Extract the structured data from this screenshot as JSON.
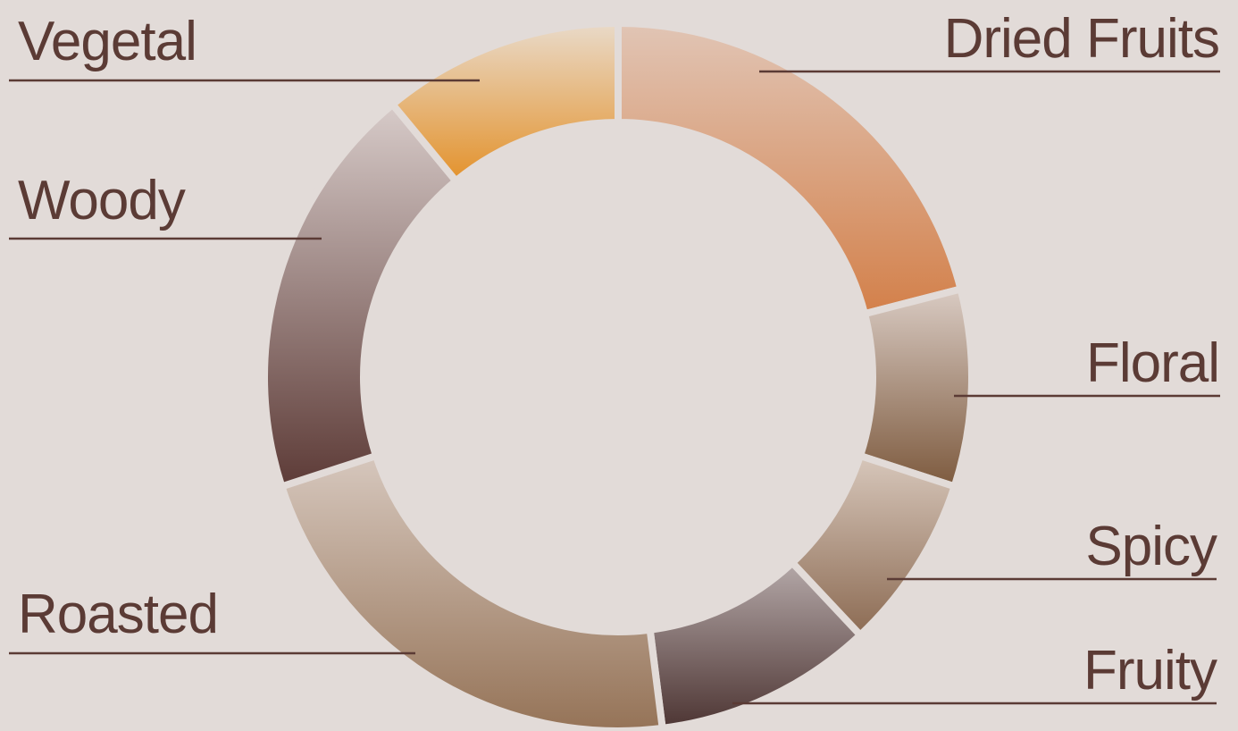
{
  "chart_data": {
    "type": "donut",
    "categories": [
      "Dried Fruits",
      "Floral",
      "Spicy",
      "Fruity",
      "Roasted",
      "Woody",
      "Vegetal"
    ],
    "values": [
      21,
      9,
      8,
      10,
      22,
      19,
      11
    ],
    "colors": [
      [
        "#e1c5b5",
        "#d3804a"
      ],
      [
        "#d9cbc3",
        "#7d5a3e"
      ],
      [
        "#d7c7bb",
        "#8c6b53"
      ],
      [
        "#b4a8a8",
        "#4d3533"
      ],
      [
        "#d6c7bd",
        "#957357"
      ],
      [
        "#d7cbc9",
        "#5d3b37"
      ],
      [
        "#e9dac9",
        "#e3922c"
      ]
    ]
  }
}
